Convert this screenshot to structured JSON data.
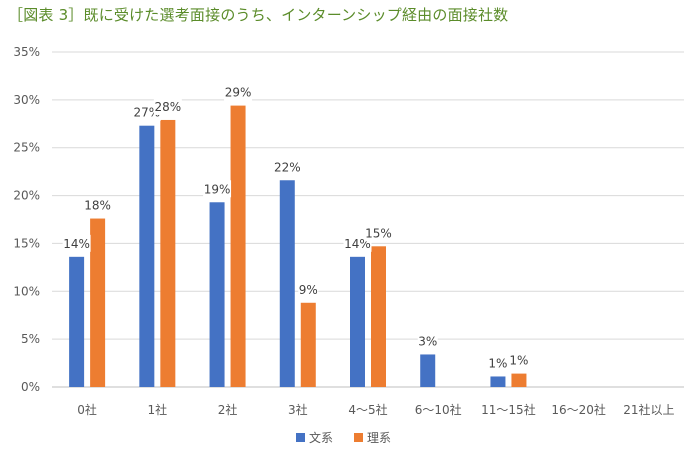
{
  "title": "［図表 3］既に受けた選考面接のうち、インターンシップ経由の面接社数",
  "colors": {
    "series0": "#4472c4",
    "series1": "#ed7d31",
    "grid": "#d9d9d9",
    "title": "#5b8c2a"
  },
  "chart_data": {
    "type": "bar",
    "title": "［図表 3］既に受けた選考面接のうち、インターンシップ経由の面接社数",
    "categories": [
      "0社",
      "1社",
      "2社",
      "3社",
      "4～5社",
      "6～10社",
      "11～15社",
      "16～20社",
      "21社以上"
    ],
    "series": [
      {
        "name": "文系",
        "values": [
          14,
          27,
          19,
          22,
          14,
          3,
          1,
          0,
          0
        ],
        "labels": [
          "14%",
          "27%",
          "19%",
          "22%",
          "14%",
          "3%",
          "1%",
          "",
          ""
        ],
        "plot": [
          13.6,
          27.3,
          19.3,
          21.6,
          13.6,
          3.4,
          1.1,
          0,
          0
        ]
      },
      {
        "name": "理系",
        "values": [
          18,
          28,
          29,
          9,
          15,
          0,
          1,
          0,
          0
        ],
        "labels": [
          "18%",
          "28%",
          "29%",
          "9%",
          "15%",
          "",
          "1%",
          "",
          ""
        ],
        "plot": [
          17.6,
          27.9,
          29.4,
          8.8,
          14.7,
          0,
          1.4,
          0,
          0
        ]
      }
    ],
    "yticks": [
      "0%",
      "5%",
      "10%",
      "15%",
      "20%",
      "25%",
      "30%",
      "35%"
    ],
    "ylim": [
      0,
      35
    ],
    "xlabel": "",
    "ylabel": "",
    "grid": true,
    "legend": "bottom"
  }
}
